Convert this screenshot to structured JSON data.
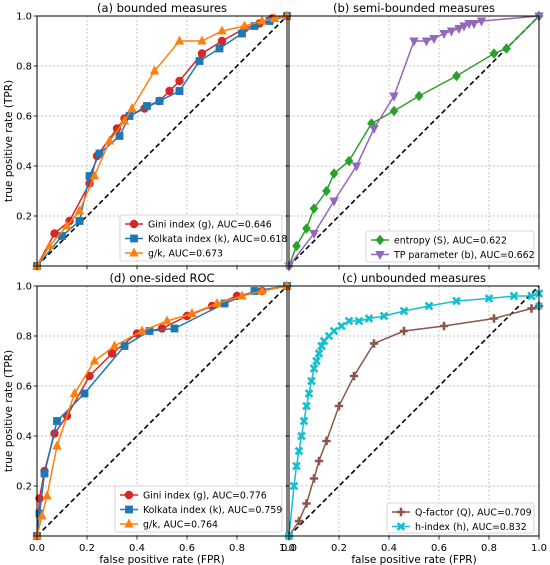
{
  "chart_data": [
    {
      "type": "line",
      "title": "(a) bounded measures",
      "xlabel": "",
      "ylabel": "true positive rate (TPR)",
      "xlim": [
        0,
        1
      ],
      "ylim": [
        0,
        1
      ],
      "x_ticks": [
        "0.0",
        "0.2",
        "0.4",
        "0.6",
        "0.8",
        "1.0"
      ],
      "y_ticks": [
        "0.2",
        "0.4",
        "0.6",
        "0.8",
        "1.0"
      ],
      "show_x_ticklabels": false,
      "show_y_ticklabels": true,
      "grid": true,
      "diagonal": true,
      "legend_position": "lower-right",
      "series": [
        {
          "name": "Gini index (g), AUC=0.646",
          "color": "#d62728",
          "marker": "circle",
          "x": [
            0,
            0.07,
            0.13,
            0.21,
            0.24,
            0.32,
            0.35,
            0.43,
            0.49,
            0.53,
            0.57,
            0.66,
            0.74,
            0.83,
            0.89,
            0.94,
            1.0
          ],
          "y": [
            0,
            0.13,
            0.18,
            0.33,
            0.44,
            0.55,
            0.59,
            0.63,
            0.66,
            0.7,
            0.74,
            0.85,
            0.9,
            0.95,
            0.97,
            0.99,
            1.0
          ]
        },
        {
          "name": "Kolkata index (k), AUC=0.618",
          "color": "#1f77b4",
          "marker": "square",
          "x": [
            0,
            0.1,
            0.17,
            0.21,
            0.25,
            0.33,
            0.37,
            0.44,
            0.49,
            0.57,
            0.65,
            0.73,
            0.82,
            0.87,
            0.93,
            1.0
          ],
          "y": [
            0,
            0.12,
            0.18,
            0.36,
            0.45,
            0.52,
            0.6,
            0.64,
            0.66,
            0.7,
            0.82,
            0.87,
            0.93,
            0.96,
            0.98,
            1.0
          ]
        },
        {
          "name": "g/k, AUC=0.673",
          "color": "#ff7f0e",
          "marker": "triangle",
          "x": [
            0,
            0.05,
            0.12,
            0.17,
            0.23,
            0.29,
            0.35,
            0.38,
            0.47,
            0.57,
            0.66,
            0.74,
            0.83,
            0.9,
            0.95,
            1.0
          ],
          "y": [
            0,
            0.08,
            0.16,
            0.22,
            0.36,
            0.5,
            0.58,
            0.63,
            0.78,
            0.9,
            0.9,
            0.94,
            0.96,
            0.98,
            0.99,
            1.0
          ]
        }
      ]
    },
    {
      "type": "line",
      "title": "(b) semi-bounded measures",
      "xlabel": "",
      "ylabel": "",
      "xlim": [
        0,
        1
      ],
      "ylim": [
        0,
        1
      ],
      "x_ticks": [
        "0.0",
        "0.2",
        "0.4",
        "0.6",
        "0.8",
        "1.0"
      ],
      "y_ticks": [
        "0.2",
        "0.4",
        "0.6",
        "0.8",
        "1.0"
      ],
      "show_x_ticklabels": false,
      "show_y_ticklabels": false,
      "grid": true,
      "diagonal": true,
      "legend_position": "lower-right",
      "series": [
        {
          "name": "entropy (S), AUC=0.622",
          "color": "#2ca02c",
          "marker": "diamond",
          "x": [
            0,
            0.03,
            0.07,
            0.1,
            0.15,
            0.18,
            0.24,
            0.33,
            0.42,
            0.52,
            0.67,
            0.82,
            0.87,
            1.0
          ],
          "y": [
            0,
            0.08,
            0.15,
            0.23,
            0.3,
            0.37,
            0.42,
            0.57,
            0.62,
            0.68,
            0.76,
            0.85,
            0.87,
            1.0
          ]
        },
        {
          "name": "TP parameter (b), AUC=0.662",
          "color": "#9467bd",
          "marker": "triangle-down",
          "x": [
            0,
            0.1,
            0.18,
            0.27,
            0.34,
            0.42,
            0.5,
            0.55,
            0.58,
            0.62,
            0.65,
            0.68,
            0.7,
            0.72,
            0.74,
            0.77,
            1.0
          ],
          "y": [
            0,
            0.13,
            0.26,
            0.4,
            0.55,
            0.68,
            0.9,
            0.9,
            0.91,
            0.93,
            0.94,
            0.95,
            0.96,
            0.97,
            0.97,
            0.98,
            1.0
          ]
        }
      ]
    },
    {
      "type": "line",
      "title": "(d) one-sided ROC",
      "xlabel": "false positive rate (FPR)",
      "ylabel": "true positive rate (TPR)",
      "xlim": [
        0,
        1
      ],
      "ylim": [
        0,
        1
      ],
      "x_ticks": [
        "0.0",
        "0.2",
        "0.4",
        "0.6",
        "0.8",
        "1.0"
      ],
      "y_ticks": [
        "0.2",
        "0.4",
        "0.6",
        "0.8",
        "1.0"
      ],
      "show_x_ticklabels": true,
      "show_y_ticklabels": true,
      "grid": true,
      "diagonal": true,
      "legend_position": "lower-right",
      "series": [
        {
          "name": "Gini index (g), AUC=0.776",
          "color": "#d62728",
          "marker": "circle",
          "x": [
            0,
            0.01,
            0.03,
            0.07,
            0.12,
            0.21,
            0.3,
            0.4,
            0.5,
            0.6,
            0.7,
            0.8,
            0.9,
            1.0
          ],
          "y": [
            0,
            0.15,
            0.26,
            0.41,
            0.48,
            0.64,
            0.73,
            0.81,
            0.83,
            0.88,
            0.92,
            0.96,
            0.98,
            1.0
          ]
        },
        {
          "name": "Kolkata index (k), AUC=0.759",
          "color": "#1f77b4",
          "marker": "square",
          "x": [
            0,
            0.01,
            0.03,
            0.08,
            0.19,
            0.35,
            0.45,
            0.55,
            0.75,
            0.87,
            1.0
          ],
          "y": [
            0,
            0.09,
            0.25,
            0.46,
            0.57,
            0.76,
            0.82,
            0.83,
            0.93,
            0.98,
            1.0
          ]
        },
        {
          "name": "g/k, AUC=0.764",
          "color": "#ff7f0e",
          "marker": "triangle",
          "x": [
            0,
            0.02,
            0.04,
            0.08,
            0.15,
            0.23,
            0.31,
            0.42,
            0.52,
            0.62,
            0.72,
            0.82,
            0.9,
            1.0
          ],
          "y": [
            0,
            0.08,
            0.16,
            0.36,
            0.57,
            0.7,
            0.76,
            0.82,
            0.86,
            0.89,
            0.93,
            0.96,
            0.98,
            1.0
          ]
        }
      ]
    },
    {
      "type": "line",
      "title": "(c) unbounded measures",
      "xlabel": "false positive rate (FPR)",
      "ylabel": "",
      "xlim": [
        0,
        1
      ],
      "ylim": [
        0,
        1
      ],
      "x_ticks": [
        "0.0",
        "0.2",
        "0.4",
        "0.6",
        "0.8",
        "1.0"
      ],
      "y_ticks": [
        "0.2",
        "0.4",
        "0.6",
        "0.8",
        "1.0"
      ],
      "show_x_ticklabels": true,
      "show_y_ticklabels": false,
      "grid": true,
      "diagonal": true,
      "legend_position": "lower-right",
      "series": [
        {
          "name": "Q-factor (Q), AUC=0.709",
          "color": "#8c564b",
          "marker": "plus",
          "x": [
            0,
            0.04,
            0.07,
            0.1,
            0.12,
            0.15,
            0.2,
            0.26,
            0.34,
            0.46,
            0.62,
            0.82,
            0.97,
            1.0
          ],
          "y": [
            0,
            0.06,
            0.13,
            0.23,
            0.3,
            0.38,
            0.52,
            0.64,
            0.77,
            0.82,
            0.84,
            0.87,
            0.91,
            0.92
          ],
          "end_cross": true
        },
        {
          "name": "h-index (h), AUC=0.832",
          "color": "#17becf",
          "marker": "x",
          "x": [
            0,
            0.02,
            0.03,
            0.04,
            0.05,
            0.06,
            0.07,
            0.08,
            0.09,
            0.1,
            0.11,
            0.12,
            0.13,
            0.14,
            0.16,
            0.18,
            0.21,
            0.24,
            0.28,
            0.32,
            0.38,
            0.46,
            0.56,
            0.67,
            0.8,
            0.9,
            0.97,
            1.0
          ],
          "y": [
            0,
            0.2,
            0.28,
            0.34,
            0.4,
            0.46,
            0.52,
            0.57,
            0.62,
            0.67,
            0.7,
            0.73,
            0.76,
            0.78,
            0.8,
            0.82,
            0.84,
            0.86,
            0.86,
            0.87,
            0.88,
            0.9,
            0.92,
            0.94,
            0.95,
            0.96,
            0.96,
            0.97
          ]
        }
      ]
    }
  ]
}
